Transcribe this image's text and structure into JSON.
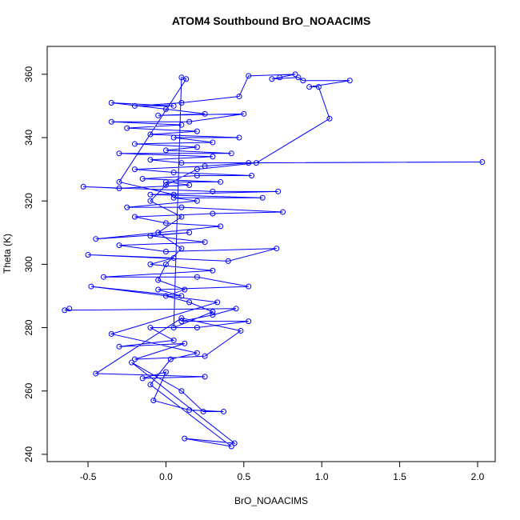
{
  "chart_data": {
    "type": "line",
    "title": "ATOM4 Southbound BrO_NOAACIMS",
    "x_label": "BrO_NOAACIMS",
    "y_label": "Theta (K)",
    "color": "#0000ff",
    "markers": true,
    "xlim": [
      -0.762,
      2.113
    ],
    "ylim": [
      237.7,
      368.8
    ],
    "xticks": [
      -0.5,
      {
        "value": 0,
        "label": "0.0"
      },
      0.5,
      {
        "value": 1,
        "label": "1.0"
      },
      1.5,
      {
        "value": 2,
        "label": "2.0"
      }
    ],
    "yticks": [
      240,
      260,
      280,
      300,
      320,
      340,
      360
    ],
    "x": [
      -0.62,
      -0.65,
      0.45,
      0.3,
      0.1,
      0.53,
      0.2,
      -0.1,
      0.05,
      -0.3,
      0.12,
      -0.2,
      0.25,
      0.48,
      0.1,
      -0.45,
      0.25,
      -0.15,
      0.0,
      -0.08,
      0.15,
      0.37,
      0.24,
      0.1,
      -0.22,
      0.44,
      0.12,
      0.42,
      -0.1,
      0.03,
      0.2,
      -0.35,
      0.33,
      -0.48,
      0.1,
      -0.05,
      0.53,
      0.2,
      -0.4,
      0.3,
      -0.1,
      0.05,
      -0.5,
      0.4,
      0.71,
      0.0,
      -0.3,
      0.25,
      -0.1,
      0.15,
      -0.45,
      0.35,
      0.0,
      -0.2,
      0.3,
      0.75,
      0.1,
      -0.25,
      0.2,
      0.05,
      0.62,
      -0.1,
      0.72,
      0.3,
      -0.53,
      -0.3,
      0.15,
      0.0,
      0.35,
      -0.15,
      0.2,
      0.55,
      0.05,
      -0.2,
      0.25,
      0.53,
      2.03,
      0.1,
      -0.1,
      0.3,
      -0.3,
      0.42,
      0.0,
      0.2,
      -0.2,
      0.3,
      0.05,
      0.47,
      -0.1,
      0.2,
      -0.25,
      0.1,
      -0.35,
      0.15,
      0.5,
      -0.05,
      0.25,
      0.0,
      -0.35,
      0.05,
      -0.2,
      0.1,
      0.47,
      0.53,
      0.83,
      0.73,
      0.68,
      0.85,
      0.88,
      1.18,
      0.92,
      0.98,
      1.05,
      0.58,
      0.2,
      0.0,
      -0.1,
      0.1,
      -0.05,
      0.1,
      0.0,
      -0.05,
      0.12,
      0.0,
      0.15,
      0.3,
      0.05,
      0.1,
      0.13,
      -0.3,
      0.05
    ],
    "series": [
      {
        "name": "Theta (K)",
        "values": [
          286,
          285.5,
          286,
          284,
          282,
          282,
          280,
          280,
          276,
          274,
          275,
          270,
          271,
          279,
          283,
          265.5,
          264.5,
          264,
          266,
          257,
          254,
          253.5,
          253.5,
          260,
          269,
          243.5,
          245,
          242.5,
          262,
          270,
          272,
          278,
          288,
          293,
          290,
          292,
          293,
          296,
          296,
          298,
          300,
          302,
          303,
          301,
          305,
          304,
          306,
          307,
          309,
          310,
          308,
          312,
          313,
          315,
          316,
          316.5,
          318,
          318,
          320,
          321,
          321,
          322,
          323,
          323,
          324.5,
          324,
          325,
          326,
          326,
          327,
          328,
          328,
          329,
          330,
          331,
          332,
          332.3,
          332,
          333,
          334,
          335,
          335,
          336,
          337,
          338,
          338.5,
          340,
          340,
          341,
          342,
          343,
          344,
          345,
          345,
          347.5,
          347,
          347.5,
          349,
          351,
          350,
          350,
          351,
          353,
          359.5,
          360,
          359,
          358.5,
          359,
          358,
          358,
          356,
          356,
          346,
          332,
          330,
          325,
          320,
          315,
          310,
          305,
          300,
          295,
          292,
          290,
          288,
          285,
          280,
          359,
          358.5,
          326,
          322
        ]
      }
    ]
  }
}
